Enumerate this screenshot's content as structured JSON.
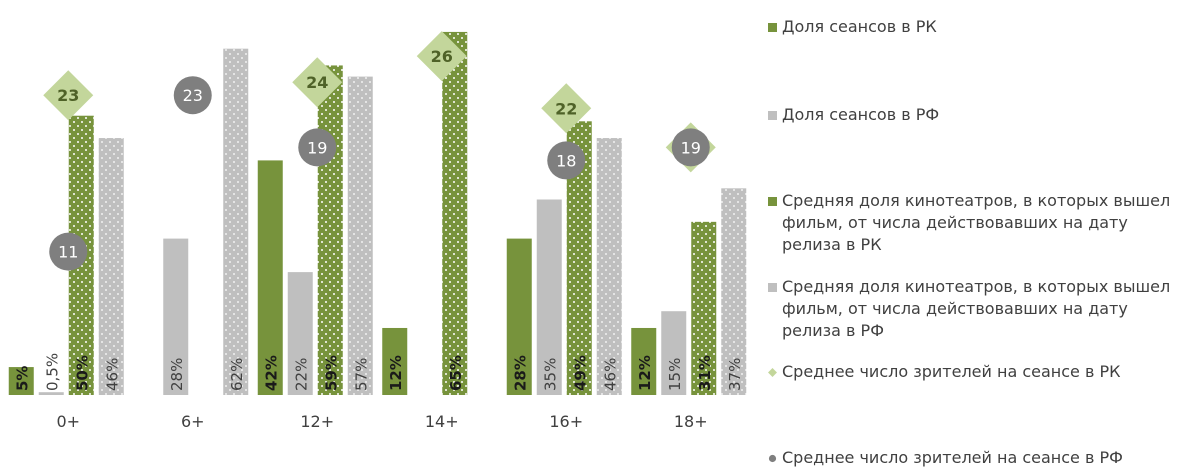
{
  "chart_data": {
    "type": "bar",
    "categories": [
      "0+",
      "6+",
      "12+",
      "14+",
      "16+",
      "18+"
    ],
    "ylim": [
      0,
      70
    ],
    "y2lim": [
      0,
      30
    ],
    "series": [
      {
        "name": "Доля сеансов в РК",
        "color": "#77933c",
        "values": [
          5,
          null,
          42,
          12,
          28,
          12
        ],
        "value_labels": [
          "5%",
          null,
          "42%",
          "12%",
          "28%",
          "12%"
        ]
      },
      {
        "name": "Доля сеансов в РФ",
        "color": "#bfbfbf",
        "values": [
          0.5,
          28,
          22,
          null,
          35,
          15
        ],
        "value_labels": [
          "0,5%",
          "28%",
          "22%",
          null,
          "35%",
          "15%"
        ]
      },
      {
        "name": "Средняя доля кинотеатров, в которых вышел фильм, от числа действовавших на дату релиза в РК",
        "color": "#77933c",
        "values": [
          50,
          null,
          59,
          65,
          49,
          31
        ],
        "value_labels": [
          "50%",
          null,
          "59%",
          "65%",
          "49%",
          "31%"
        ]
      },
      {
        "name": "Средняя доля кинотеатров, в которых вышел фильм, от числа действовавших на дату релиза в РФ",
        "color": "#bfbfbf",
        "values": [
          46,
          62,
          57,
          null,
          46,
          37
        ],
        "value_labels": [
          "46%",
          "62%",
          "57%",
          null,
          "46%",
          "37%"
        ]
      },
      {
        "name": "Среднее число зрителей на сеансе в РК",
        "color": "#c3d69b",
        "axis": "y2",
        "marker": "diamond",
        "values": [
          23,
          null,
          24,
          26,
          22,
          19
        ]
      },
      {
        "name": "Среднее число зрителей на сеансе в РФ",
        "color": "#7f7f7f",
        "axis": "y2",
        "marker": "circle",
        "values": [
          11,
          23,
          19,
          null,
          18,
          19
        ]
      }
    ]
  }
}
